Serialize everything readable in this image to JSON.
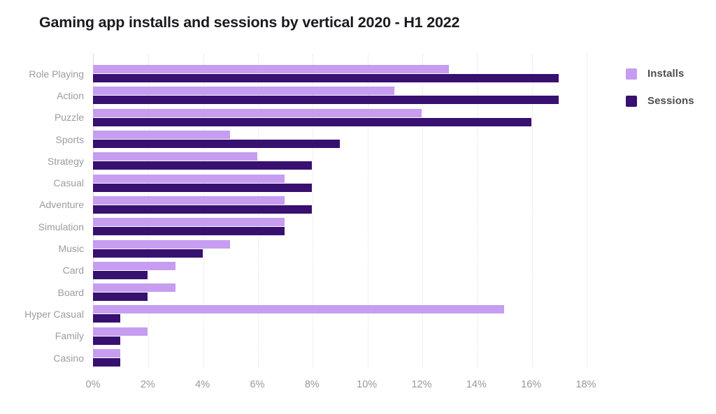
{
  "title": "Gaming app installs and sessions by vertical 2020 - H1 2022",
  "colors": {
    "installs": "#c69df0",
    "sessions": "#371070",
    "title_text": "#1b1920",
    "category_label_text": "#9c9ca3",
    "tick_label_text": "#98989f",
    "gridline": "#e4e4e9",
    "axis_line": "#d6d6db",
    "background": "#ffffff"
  },
  "legend": {
    "items": [
      {
        "label": "Installs",
        "color_key": "installs"
      },
      {
        "label": "Sessions",
        "color_key": "sessions"
      }
    ]
  },
  "chart_data": {
    "type": "bar",
    "orientation": "horizontal",
    "title": "Gaming app installs and sessions by vertical 2020 - H1 2022",
    "categories": [
      "Role Playing",
      "Action",
      "Puzzle",
      "Sports",
      "Strategy",
      "Casual",
      "Adventure",
      "Simulation",
      "Music",
      "Card",
      "Board",
      "Hyper Casual",
      "Family",
      "Casino"
    ],
    "series": [
      {
        "name": "Installs",
        "values": [
          13,
          11,
          12,
          5,
          6,
          7,
          7,
          7,
          5,
          3,
          3,
          15,
          2,
          1
        ]
      },
      {
        "name": "Sessions",
        "values": [
          17,
          17,
          16,
          9,
          8,
          8,
          8,
          7,
          4,
          2,
          2,
          1,
          1,
          1
        ]
      }
    ],
    "unit": "%",
    "xlim": [
      0,
      18
    ],
    "x_ticks": [
      {
        "value": 0,
        "label": "0%"
      },
      {
        "value": 2,
        "label": "2%"
      },
      {
        "value": 4,
        "label": "4%"
      },
      {
        "value": 6,
        "label": "6%"
      },
      {
        "value": 8,
        "label": "8%"
      },
      {
        "value": 10,
        "label": "10%"
      },
      {
        "value": 12,
        "label": "12%"
      },
      {
        "value": 14,
        "label": "14%"
      },
      {
        "value": 16,
        "label": "16%"
      },
      {
        "value": 18,
        "label": "18%"
      }
    ],
    "grid": "vertical-dotted",
    "legend_position": "top-right"
  }
}
